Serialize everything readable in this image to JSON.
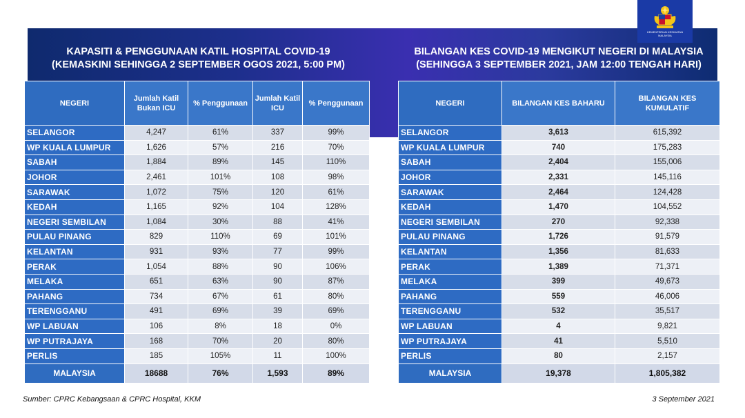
{
  "left_panel": {
    "title_line1": "KAPASITI & PENGGUNAAN KATIL HOSPITAL COVID-19",
    "title_line2": "(KEMASKINI SEHINGGA 2 SEPTEMBER OGOS 2021, 5:00 PM)",
    "headers": [
      "NEGERI",
      "Jumlah Katil Bukan ICU",
      "% Penggunaan",
      "Jumlah Katil ICU",
      "% Penggunaan"
    ],
    "rows": [
      [
        "SELANGOR",
        "4,247",
        "61%",
        "337",
        "99%"
      ],
      [
        "WP KUALA LUMPUR",
        "1,626",
        "57%",
        "216",
        "70%"
      ],
      [
        "SABAH",
        "1,884",
        "89%",
        "145",
        "110%"
      ],
      [
        "JOHOR",
        "2,461",
        "101%",
        "108",
        "98%"
      ],
      [
        "SARAWAK",
        "1,072",
        "75%",
        "120",
        "61%"
      ],
      [
        "KEDAH",
        "1,165",
        "92%",
        "104",
        "128%"
      ],
      [
        "NEGERI SEMBILAN",
        "1,084",
        "30%",
        "88",
        "41%"
      ],
      [
        "PULAU PINANG",
        "829",
        "110%",
        "69",
        "101%"
      ],
      [
        "KELANTAN",
        "931",
        "93%",
        "77",
        "99%"
      ],
      [
        "PERAK",
        "1,054",
        "88%",
        "90",
        "106%"
      ],
      [
        "MELAKA",
        "651",
        "63%",
        "90",
        "87%"
      ],
      [
        "PAHANG",
        "734",
        "67%",
        "61",
        "80%"
      ],
      [
        "TERENGGANU",
        "491",
        "69%",
        "39",
        "69%"
      ],
      [
        "WP LABUAN",
        "106",
        "8%",
        "18",
        "0%"
      ],
      [
        "WP PUTRAJAYA",
        "168",
        "70%",
        "20",
        "80%"
      ],
      [
        "PERLIS",
        "185",
        "105%",
        "11",
        "100%"
      ]
    ],
    "total": [
      "MALAYSIA",
      "18688",
      "76%",
      "1,593",
      "89%"
    ]
  },
  "right_panel": {
    "title_line1": "BILANGAN KES COVID-19 MENGIKUT NEGERI DI MALAYSIA",
    "title_line2": "(SEHINGGA 3 SEPTEMBER 2021, JAM 12:00 TENGAH HARI)",
    "headers": [
      "NEGERI",
      "BILANGAN KES BAHARU",
      "BILANGAN KES KUMULATIF"
    ],
    "rows": [
      [
        "SELANGOR",
        "3,613",
        "615,392"
      ],
      [
        "WP KUALA LUMPUR",
        "740",
        "175,283"
      ],
      [
        "SABAH",
        "2,404",
        "155,006"
      ],
      [
        "JOHOR",
        "2,331",
        "145,116"
      ],
      [
        "SARAWAK",
        "2,464",
        "124,428"
      ],
      [
        "KEDAH",
        "1,470",
        "104,552"
      ],
      [
        "NEGERI SEMBILAN",
        "270",
        "92,338"
      ],
      [
        "PULAU PINANG",
        "1,726",
        "91,579"
      ],
      [
        "KELANTAN",
        "1,356",
        "81,633"
      ],
      [
        "PERAK",
        "1,389",
        "71,371"
      ],
      [
        "MELAKA",
        "399",
        "49,673"
      ],
      [
        "PAHANG",
        "559",
        "46,006"
      ],
      [
        "TERENGGANU",
        "532",
        "35,517"
      ],
      [
        "WP LABUAN",
        "4",
        "9,821"
      ],
      [
        "WP PUTRAJAYA",
        "41",
        "5,510"
      ],
      [
        "PERLIS",
        "80",
        "2,157"
      ]
    ],
    "total": [
      "MALAYSIA",
      "19,378",
      "1,805,382"
    ]
  },
  "logo_text": "KEMENTERIAN KESIHATAN MALAYSIA",
  "footer": {
    "source": "Sumber: CPRC Kebangsaan & CPRC Hospital, KKM",
    "date": "3 September 2021"
  },
  "colors": {
    "header_blue": "#3a77c9",
    "state_blue": "#2e6bc3",
    "row_light": "#edf0f6",
    "row_dark": "#d7dde9"
  }
}
